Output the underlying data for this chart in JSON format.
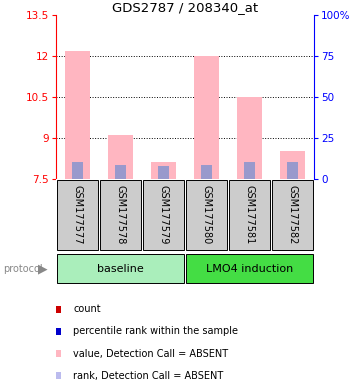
{
  "title": "GDS2787 / 208340_at",
  "samples": [
    "GSM177577",
    "GSM177578",
    "GSM177579",
    "GSM177580",
    "GSM177581",
    "GSM177582"
  ],
  "ylim_left": [
    7.5,
    13.5
  ],
  "ylim_right": [
    0,
    100
  ],
  "yticks_left": [
    7.5,
    9.0,
    10.5,
    12.0,
    13.5
  ],
  "ytick_labels_left": [
    "7.5",
    "9",
    "10.5",
    "12",
    "13.5"
  ],
  "yticks_right": [
    0,
    25,
    50,
    75,
    100
  ],
  "ytick_labels_right": [
    "0",
    "25",
    "50",
    "75",
    "100%"
  ],
  "pink_bar_top": [
    12.2,
    9.1,
    8.1,
    12.0,
    10.5,
    8.5
  ],
  "blue_seg_top": [
    8.1,
    8.0,
    7.95,
    8.0,
    8.1,
    8.1
  ],
  "bar_bottom": 7.5,
  "pink_color": "#FFB6C1",
  "blue_color": "#9999CC",
  "bar_width": 0.6,
  "baseline_bg": "#AAEEBB",
  "lmo4_bg": "#44DD44",
  "sample_bg": "#CCCCCC",
  "legend_items": [
    {
      "color": "#CC0000",
      "label": "count"
    },
    {
      "color": "#0000CC",
      "label": "percentile rank within the sample"
    },
    {
      "color": "#FFB6C1",
      "label": "value, Detection Call = ABSENT"
    },
    {
      "color": "#BBBBEE",
      "label": "rank, Detection Call = ABSENT"
    }
  ]
}
